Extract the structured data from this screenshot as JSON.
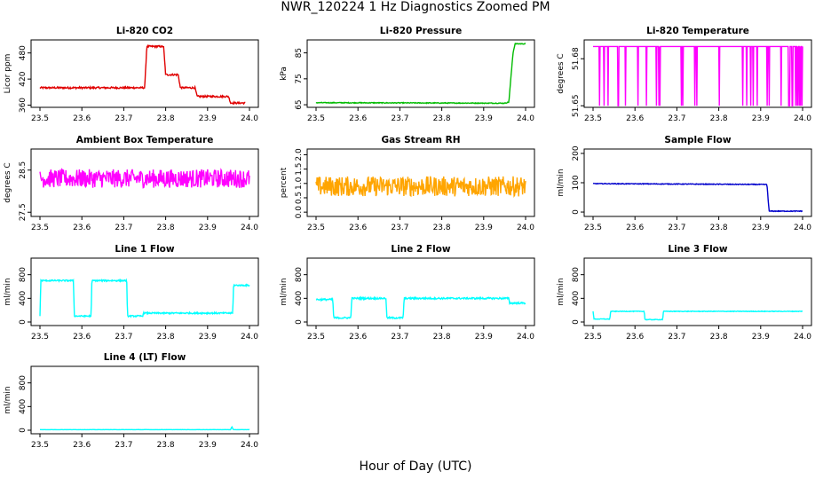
{
  "title": "NWR_120224  1 Hz Diagnostics Zoomed PM",
  "xlabel": "Hour of Day (UTC)",
  "chart_data": [
    {
      "type": "line",
      "title": "Li-820 CO2",
      "ylabel": "Licor ppm",
      "color": "#e00000",
      "xlim": [
        23.5,
        24.0
      ],
      "ylim": [
        355,
        510
      ],
      "xticks": [
        "23.5",
        "23.6",
        "23.7",
        "23.8",
        "23.9",
        "24.0"
      ],
      "yticks": [
        [
          "360",
          360
        ],
        [
          "420",
          420
        ],
        [
          "480",
          480
        ]
      ],
      "series": [
        {
          "x": [
            23.5,
            23.75,
            23.755,
            23.795,
            23.8,
            23.83,
            23.835,
            23.87,
            23.875,
            23.95,
            23.955,
            23.99
          ],
          "y": [
            400,
            400,
            495,
            495,
            430,
            430,
            400,
            400,
            380,
            380,
            365,
            365
          ]
        }
      ],
      "noise": 2
    },
    {
      "type": "line",
      "title": "Li-820 Pressure",
      "ylabel": "kPa",
      "color": "#00bb00",
      "xlim": [
        23.5,
        24.0
      ],
      "ylim": [
        64,
        90
      ],
      "xticks": [
        "23.5",
        "23.6",
        "23.7",
        "23.8",
        "23.9",
        "24.0"
      ],
      "yticks": [
        [
          "65",
          65
        ],
        [
          "75",
          75
        ],
        [
          "85",
          85
        ]
      ],
      "series": [
        {
          "x": [
            23.5,
            23.95,
            23.96,
            23.97,
            23.975,
            24.0
          ],
          "y": [
            65.8,
            65.6,
            66,
            85,
            88.5,
            88.5
          ]
        }
      ],
      "noise": 0.15
    },
    {
      "type": "line",
      "title": "Li-820 Temperature",
      "ylabel": "degrees C",
      "color": "#ff00ff",
      "xlim": [
        23.5,
        24.0
      ],
      "ylim": [
        51.649,
        51.692
      ],
      "xticks": [
        "23.5",
        "23.6",
        "23.7",
        "23.8",
        "23.9",
        "24.0"
      ],
      "yticks": [
        [
          "51.65",
          51.65
        ],
        [
          "51.68",
          51.68
        ]
      ],
      "series": [
        {
          "x": [
            23.5,
            24.0
          ],
          "y": [
            51.68,
            51.68
          ]
        }
      ],
      "pattern": "binary",
      "noise": 0
    },
    {
      "type": "line",
      "title": "Ambient Box Temperature",
      "ylabel": "degrees C",
      "color": "#ff00ff",
      "xlim": [
        23.5,
        24.0
      ],
      "ylim": [
        27.4,
        29.0
      ],
      "xticks": [
        "23.5",
        "23.6",
        "23.7",
        "23.8",
        "23.9",
        "24.0"
      ],
      "yticks": [
        [
          "27.5",
          27.5
        ],
        [
          "28.5",
          28.5
        ]
      ],
      "series": [
        {
          "x": [
            23.5,
            24.0
          ],
          "y": [
            28.3,
            28.3
          ]
        }
      ],
      "noise": 0.22
    },
    {
      "type": "line",
      "title": "Gas Stream RH",
      "ylabel": "percent",
      "color": "#ffa500",
      "xlim": [
        23.5,
        24.0
      ],
      "ylim": [
        -0.15,
        2.2
      ],
      "xticks": [
        "23.5",
        "23.6",
        "23.7",
        "23.8",
        "23.9",
        "24.0"
      ],
      "yticks": [
        [
          "0.0",
          0
        ],
        [
          "0.5",
          0.5
        ],
        [
          "1.0",
          1.0
        ],
        [
          "1.5",
          1.5
        ],
        [
          "2.0",
          2.0
        ]
      ],
      "series": [
        {
          "x": [
            23.5,
            24.0
          ],
          "y": [
            0.9,
            0.9
          ]
        }
      ],
      "noise": 0.35
    },
    {
      "type": "line",
      "title": "Sample Flow",
      "ylabel": "ml/min",
      "color": "#0000cc",
      "xlim": [
        23.5,
        24.0
      ],
      "ylim": [
        -15,
        215
      ],
      "xticks": [
        "23.5",
        "23.6",
        "23.7",
        "23.8",
        "23.9",
        "24.0"
      ],
      "yticks": [
        [
          "0",
          0
        ],
        [
          "100",
          100
        ],
        [
          "200",
          200
        ]
      ],
      "series": [
        {
          "x": [
            23.5,
            23.915,
            23.92,
            24.0
          ],
          "y": [
            97,
            94,
            3,
            3
          ]
        }
      ],
      "noise": 1.2
    },
    {
      "type": "line",
      "title": "Line 1 Flow",
      "ylabel": "ml/min",
      "color": "#00ffff",
      "xlim": [
        23.5,
        24.0
      ],
      "ylim": [
        -60,
        1080
      ],
      "xticks": [
        "23.5",
        "23.6",
        "23.7",
        "23.8",
        "23.9",
        "24.0"
      ],
      "yticks": [
        [
          "0",
          0
        ],
        [
          "400",
          400
        ],
        [
          "800",
          800
        ]
      ],
      "series": [
        {
          "x": [
            23.5,
            23.502,
            23.58,
            23.582,
            23.622,
            23.624,
            23.707,
            23.709,
            23.745,
            23.747,
            23.96,
            23.962,
            24.0
          ],
          "y": [
            100,
            700,
            700,
            100,
            100,
            700,
            700,
            100,
            100,
            150,
            150,
            620,
            620
          ]
        }
      ],
      "noise": 12
    },
    {
      "type": "line",
      "title": "Line 2 Flow",
      "ylabel": "ml/min",
      "color": "#00ffff",
      "xlim": [
        23.5,
        24.0
      ],
      "ylim": [
        -60,
        1080
      ],
      "xticks": [
        "23.5",
        "23.6",
        "23.7",
        "23.8",
        "23.9",
        "24.0"
      ],
      "yticks": [
        [
          "0",
          0
        ],
        [
          "400",
          400
        ],
        [
          "800",
          800
        ]
      ],
      "series": [
        {
          "x": [
            23.5,
            23.54,
            23.542,
            23.583,
            23.585,
            23.667,
            23.669,
            23.708,
            23.71,
            23.96,
            23.962,
            24.0
          ],
          "y": [
            380,
            380,
            70,
            70,
            400,
            400,
            70,
            70,
            400,
            400,
            320,
            320
          ]
        }
      ],
      "noise": 14
    },
    {
      "type": "line",
      "title": "Line 3 Flow",
      "ylabel": "ml/min",
      "color": "#00ffff",
      "xlim": [
        23.5,
        24.0
      ],
      "ylim": [
        -60,
        1080
      ],
      "xticks": [
        "23.5",
        "23.6",
        "23.7",
        "23.8",
        "23.9",
        "24.0"
      ],
      "yticks": [
        [
          "0",
          0
        ],
        [
          "400",
          400
        ],
        [
          "800",
          800
        ]
      ],
      "series": [
        {
          "x": [
            23.5,
            23.502,
            23.54,
            23.542,
            23.622,
            23.624,
            23.666,
            23.668,
            24.0
          ],
          "y": [
            180,
            50,
            50,
            180,
            180,
            40,
            40,
            180,
            180
          ]
        }
      ],
      "noise": 5
    },
    {
      "type": "line",
      "title": "Line 4 (LT) Flow",
      "ylabel": "ml/min",
      "color": "#00ffff",
      "xlim": [
        23.5,
        24.0
      ],
      "ylim": [
        -60,
        1080
      ],
      "xticks": [
        "23.5",
        "23.6",
        "23.7",
        "23.8",
        "23.9",
        "24.0"
      ],
      "yticks": [
        [
          "0",
          0
        ],
        [
          "400",
          400
        ],
        [
          "800",
          800
        ]
      ],
      "series": [
        {
          "x": [
            23.5,
            23.955,
            23.958,
            23.961,
            24.0
          ],
          "y": [
            10,
            10,
            60,
            10,
            10
          ]
        }
      ],
      "noise": 1.5
    }
  ]
}
